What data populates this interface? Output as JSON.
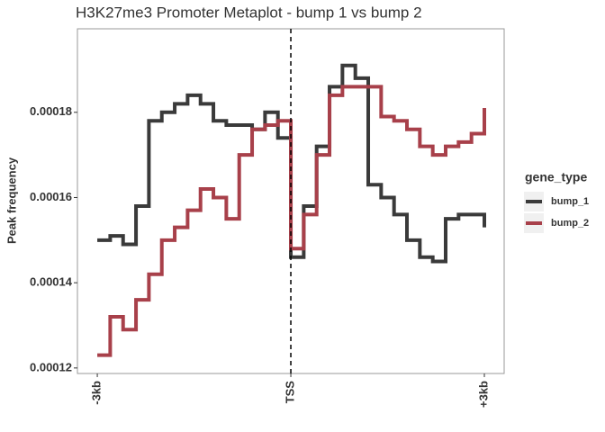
{
  "chart_data": {
    "type": "step-line",
    "title": "H3K27me3 Promoter Metaplot - bump 1 vs bump 2",
    "y_label": "Peak frequency",
    "legend_title": "gene_type",
    "legend_position": "right",
    "x": [
      -3000,
      -2800,
      -2600,
      -2400,
      -2200,
      -2000,
      -1800,
      -1600,
      -1400,
      -1200,
      -1000,
      -800,
      -600,
      -400,
      -200,
      0,
      200,
      400,
      600,
      800,
      1000,
      1200,
      1400,
      1600,
      1800,
      2000,
      2200,
      2400,
      2600,
      2800,
      3000
    ],
    "series": [
      {
        "name": "bump_1",
        "color": "#3a3a3a",
        "values": [
          0.00015,
          0.000151,
          0.000149,
          0.000158,
          0.000178,
          0.00018,
          0.000182,
          0.000184,
          0.000182,
          0.000178,
          0.000177,
          0.000177,
          0.000176,
          0.00018,
          0.000174,
          0.000146,
          0.000158,
          0.000172,
          0.000186,
          0.000191,
          0.000188,
          0.000163,
          0.00016,
          0.000156,
          0.00015,
          0.000146,
          0.000145,
          0.000155,
          0.000156,
          0.000156,
          0.000153
        ]
      },
      {
        "name": "bump_2",
        "color": "#a8404a",
        "values": [
          0.000123,
          0.000132,
          0.000129,
          0.000136,
          0.000142,
          0.00015,
          0.000153,
          0.000157,
          0.000162,
          0.00016,
          0.000155,
          0.00017,
          0.000176,
          0.000177,
          0.000178,
          0.000148,
          0.000156,
          0.00017,
          0.000184,
          0.000186,
          0.000186,
          0.000186,
          0.000179,
          0.000178,
          0.000176,
          0.000172,
          0.00017,
          0.000172,
          0.000173,
          0.000175,
          0.000181
        ]
      }
    ],
    "xlim": [
      -3308,
      3307
    ],
    "xticks": [
      {
        "value": -3000,
        "label": "-3kb"
      },
      {
        "value": 0,
        "label": "TSS"
      },
      {
        "value": 3000,
        "label": "+3kb"
      }
    ],
    "ylim": [
      0.0001187,
      0.0001996
    ],
    "yticks": [
      0.00012,
      0.00014,
      0.00016,
      0.00018
    ],
    "vline": 0,
    "grid": false
  }
}
